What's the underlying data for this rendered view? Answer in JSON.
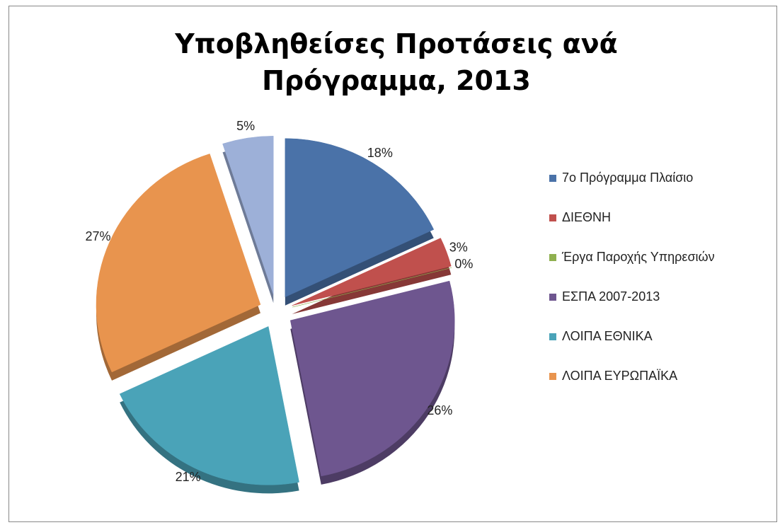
{
  "chart_data": {
    "type": "pie",
    "title": "Υποβληθείσες Προτάσεις ανά Πρόγραμμα, 2013",
    "categories": [
      "7ο Πρόγραμμα Πλαίσιο",
      "ΔΙΕΘΝΗ",
      "Έργα Παροχής Υπηρεσιών",
      "ΕΣΠΑ 2007-2013",
      "ΛΟΙΠΑ ΕΘΝΙΚΑ",
      "ΛΟΙΠΑ ΕΥΡΩΠΑΪΚΑ",
      null
    ],
    "values": [
      18,
      3,
      0,
      26,
      21,
      27,
      5
    ],
    "value_labels": [
      "18%",
      "3%",
      "0%",
      "26%",
      "21%",
      "27%",
      "5%"
    ],
    "colors": [
      "#4a72a8",
      "#c0504d",
      "#8fb04f",
      "#6e568f",
      "#4aa3b8",
      "#e8944e",
      "#9db0d8"
    ],
    "legend": "right"
  }
}
